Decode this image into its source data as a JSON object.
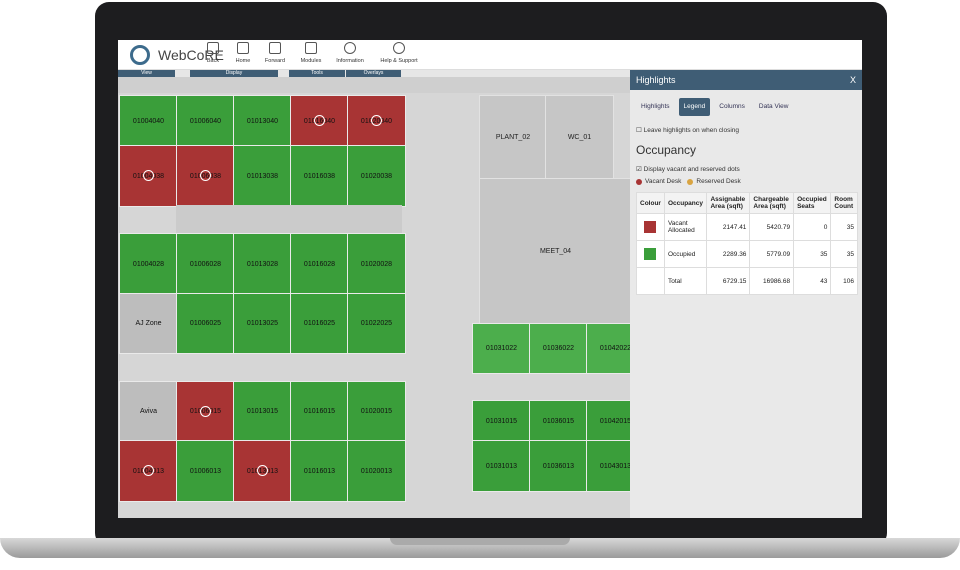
{
  "toolbar": {
    "app_name": "WebCoRE",
    "buttons": [
      "Back",
      "Home",
      "Forward",
      "Modules",
      "Information",
      "Help & Support"
    ],
    "sections": [
      "View",
      "Display",
      "Tools",
      "Overlays"
    ]
  },
  "floorplan": {
    "left_rows": [
      [
        {
          "label": "01004040",
          "color": "#3a9e3a"
        },
        {
          "label": "01006040",
          "color": "#3a9e3a"
        },
        {
          "label": "01013040",
          "color": "#3a9e3a"
        },
        {
          "label": "01016040",
          "color": "#a83434"
        },
        {
          "label": "01020040",
          "color": "#a83434"
        }
      ],
      [
        {
          "label": "01004038",
          "color": "#a83434"
        },
        {
          "label": "01006038",
          "color": "#a83434"
        },
        {
          "label": "01013038",
          "color": "#3a9e3a"
        },
        {
          "label": "01016038",
          "color": "#3a9e3a"
        },
        {
          "label": "01020038",
          "color": "#3a9e3a"
        }
      ],
      [
        {
          "label": "01004028",
          "color": "#3a9e3a"
        },
        {
          "label": "01006028",
          "color": "#3a9e3a"
        },
        {
          "label": "01013028",
          "color": "#3a9e3a"
        },
        {
          "label": "01016028",
          "color": "#3a9e3a"
        },
        {
          "label": "01020028",
          "color": "#3a9e3a"
        }
      ],
      [
        {
          "label": "AJ Zone",
          "color": "#bdbdbd"
        },
        {
          "label": "01006025",
          "color": "#3a9e3a"
        },
        {
          "label": "01013025",
          "color": "#3a9e3a"
        },
        {
          "label": "01016025",
          "color": "#3a9e3a"
        },
        {
          "label": "01022025",
          "color": "#3a9e3a"
        }
      ],
      [
        {
          "label": "Aviva",
          "color": "#bdbdbd"
        },
        {
          "label": "01006015",
          "color": "#a83434"
        },
        {
          "label": "01013015",
          "color": "#3a9e3a"
        },
        {
          "label": "01016015",
          "color": "#3a9e3a"
        },
        {
          "label": "01020015",
          "color": "#3a9e3a"
        }
      ],
      [
        {
          "label": "01004013",
          "color": "#a83434"
        },
        {
          "label": "01006013",
          "color": "#3a9e3a"
        },
        {
          "label": "01013013",
          "color": "#a83434"
        },
        {
          "label": "01016013",
          "color": "#3a9e3a"
        },
        {
          "label": "01020013",
          "color": "#3a9e3a"
        }
      ]
    ],
    "rooms": [
      "PLANT_02",
      "WC_01",
      "MEET_04"
    ],
    "right_rows": [
      [
        {
          "label": "01031022",
          "color": "#4cae4c"
        },
        {
          "label": "01036022",
          "color": "#4cae4c"
        },
        {
          "label": "01042022",
          "color": "#4cae4c"
        }
      ],
      [
        {
          "label": "01031015",
          "color": "#3a9e3a"
        },
        {
          "label": "01036015",
          "color": "#3a9e3a"
        },
        {
          "label": "01042015",
          "color": "#3a9e3a"
        }
      ],
      [
        {
          "label": "01031013",
          "color": "#3a9e3a"
        },
        {
          "label": "01036013",
          "color": "#3a9e3a"
        },
        {
          "label": "01043013",
          "color": "#3a9e3a"
        }
      ]
    ]
  },
  "panel": {
    "title": "Highlights",
    "close": "X",
    "tabs": [
      "Highlights",
      "Legend",
      "Columns",
      "Data View"
    ],
    "leave_on": "Leave highlights on when closing",
    "heading": "Occupancy",
    "display_dots": "Display vacant and reserved dots",
    "legend": [
      {
        "label": "Vacant Desk",
        "color": "#a83434"
      },
      {
        "label": "Reserved Desk",
        "color": "#d9a441"
      }
    ],
    "table": {
      "headers": [
        "Colour",
        "Occupancy",
        "Assignable Area (sqft)",
        "Chargeable Area (sqft)",
        "Occupied Seats",
        "Room Count"
      ],
      "rows": [
        {
          "color": "#a83434",
          "cells": [
            "Vacant Allocated",
            "2147.41",
            "5420.79",
            "0",
            "35"
          ]
        },
        {
          "color": "#3a9e3a",
          "cells": [
            "Occupied",
            "2289.36",
            "5779.09",
            "35",
            "35"
          ]
        },
        {
          "cells": [
            "Total",
            "6729.15",
            "16986.68",
            "43",
            "106"
          ]
        }
      ]
    }
  }
}
